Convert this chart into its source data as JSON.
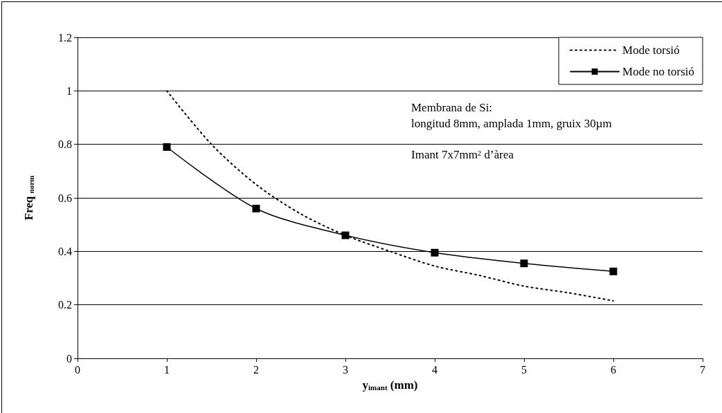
{
  "chart_data": {
    "type": "line",
    "xlabel": "y$_{imant}$ (mm)",
    "ylabel": "Freq $_{norm}$",
    "xlim": [
      0,
      7
    ],
    "xticks": [
      0,
      1,
      2,
      3,
      4,
      5,
      6,
      7
    ],
    "ylim": [
      0,
      1.2
    ],
    "yticks": [
      0,
      0.2,
      0.4,
      0.6,
      0.8,
      1,
      1.2
    ],
    "grid": "y",
    "legend": "top right",
    "series": [
      {
        "name": "Mode torsió",
        "color": "#000000",
        "line_style": "dotted",
        "marker": "none",
        "x": [
          1,
          1.5,
          2,
          2.5,
          3,
          3.5,
          4,
          4.5,
          5,
          5.5,
          6
        ],
        "values": [
          1.0,
          0.8,
          0.65,
          0.54,
          0.46,
          0.4,
          0.345,
          0.31,
          0.27,
          0.245,
          0.215
        ]
      },
      {
        "name": "Mode no torsió",
        "color": "#000000",
        "line_style": "solid",
        "marker": "square",
        "x": [
          1,
          2,
          3,
          4,
          5,
          6
        ],
        "values": [
          0.79,
          0.56,
          0.46,
          0.395,
          0.355,
          0.325
        ]
      }
    ],
    "annotations": [
      "Membrana de Si:",
      "longitud 8mm, amplada 1mm, gruix 30µm",
      "Imant 7x7mm$^{2}$ d’àrea"
    ]
  }
}
